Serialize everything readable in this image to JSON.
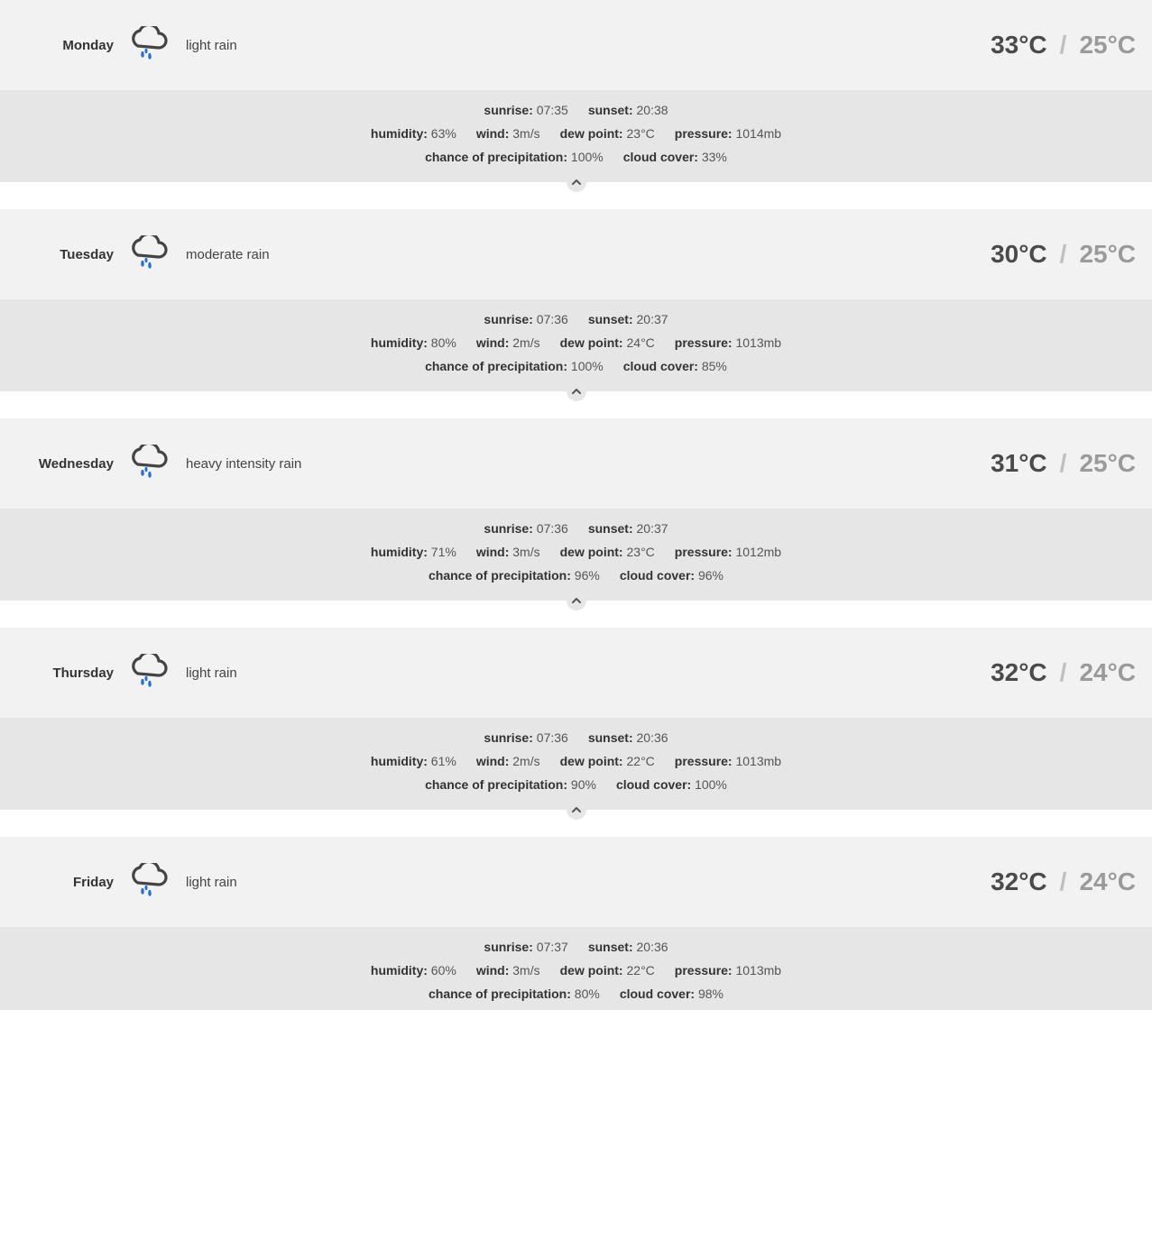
{
  "colors": {
    "header_bg": "#f2f2f2",
    "details_bg": "#e6e6e6",
    "temp_high": "#4a4a4a",
    "temp_low": "#9a9a9a",
    "temp_sep": "#bfbfbf",
    "cloud_stroke": "#444444",
    "rain_fill": "#2a6fd6"
  },
  "labels": {
    "sunrise": "sunrise:",
    "sunset": "sunset:",
    "humidity": "humidity:",
    "wind": "wind:",
    "dew_point": "dew point:",
    "pressure": "pressure:",
    "precip": "chance of precipitation:",
    "cloud": "cloud cover:"
  },
  "days": [
    {
      "name": "Monday",
      "condition": "light rain",
      "icon": "rain",
      "high": "33°C",
      "low": "25°C",
      "sunrise": "07:35",
      "sunset": "20:38",
      "humidity": "63%",
      "wind": "3m/s",
      "dew_point": "23°C",
      "pressure": "1014mb",
      "precip": "100%",
      "cloud": "33%"
    },
    {
      "name": "Tuesday",
      "condition": "moderate rain",
      "icon": "rain",
      "high": "30°C",
      "low": "25°C",
      "sunrise": "07:36",
      "sunset": "20:37",
      "humidity": "80%",
      "wind": "2m/s",
      "dew_point": "24°C",
      "pressure": "1013mb",
      "precip": "100%",
      "cloud": "85%"
    },
    {
      "name": "Wednesday",
      "condition": "heavy intensity rain",
      "icon": "rain",
      "high": "31°C",
      "low": "25°C",
      "sunrise": "07:36",
      "sunset": "20:37",
      "humidity": "71%",
      "wind": "3m/s",
      "dew_point": "23°C",
      "pressure": "1012mb",
      "precip": "96%",
      "cloud": "96%"
    },
    {
      "name": "Thursday",
      "condition": "light rain",
      "icon": "rain",
      "high": "32°C",
      "low": "24°C",
      "sunrise": "07:36",
      "sunset": "20:36",
      "humidity": "61%",
      "wind": "2m/s",
      "dew_point": "22°C",
      "pressure": "1013mb",
      "precip": "90%",
      "cloud": "100%"
    },
    {
      "name": "Friday",
      "condition": "light rain",
      "icon": "rain",
      "high": "32°C",
      "low": "24°C",
      "sunrise": "07:37",
      "sunset": "20:36",
      "humidity": "60%",
      "wind": "3m/s",
      "dew_point": "22°C",
      "pressure": "1013mb",
      "precip": "80%",
      "cloud": "98%"
    }
  ]
}
